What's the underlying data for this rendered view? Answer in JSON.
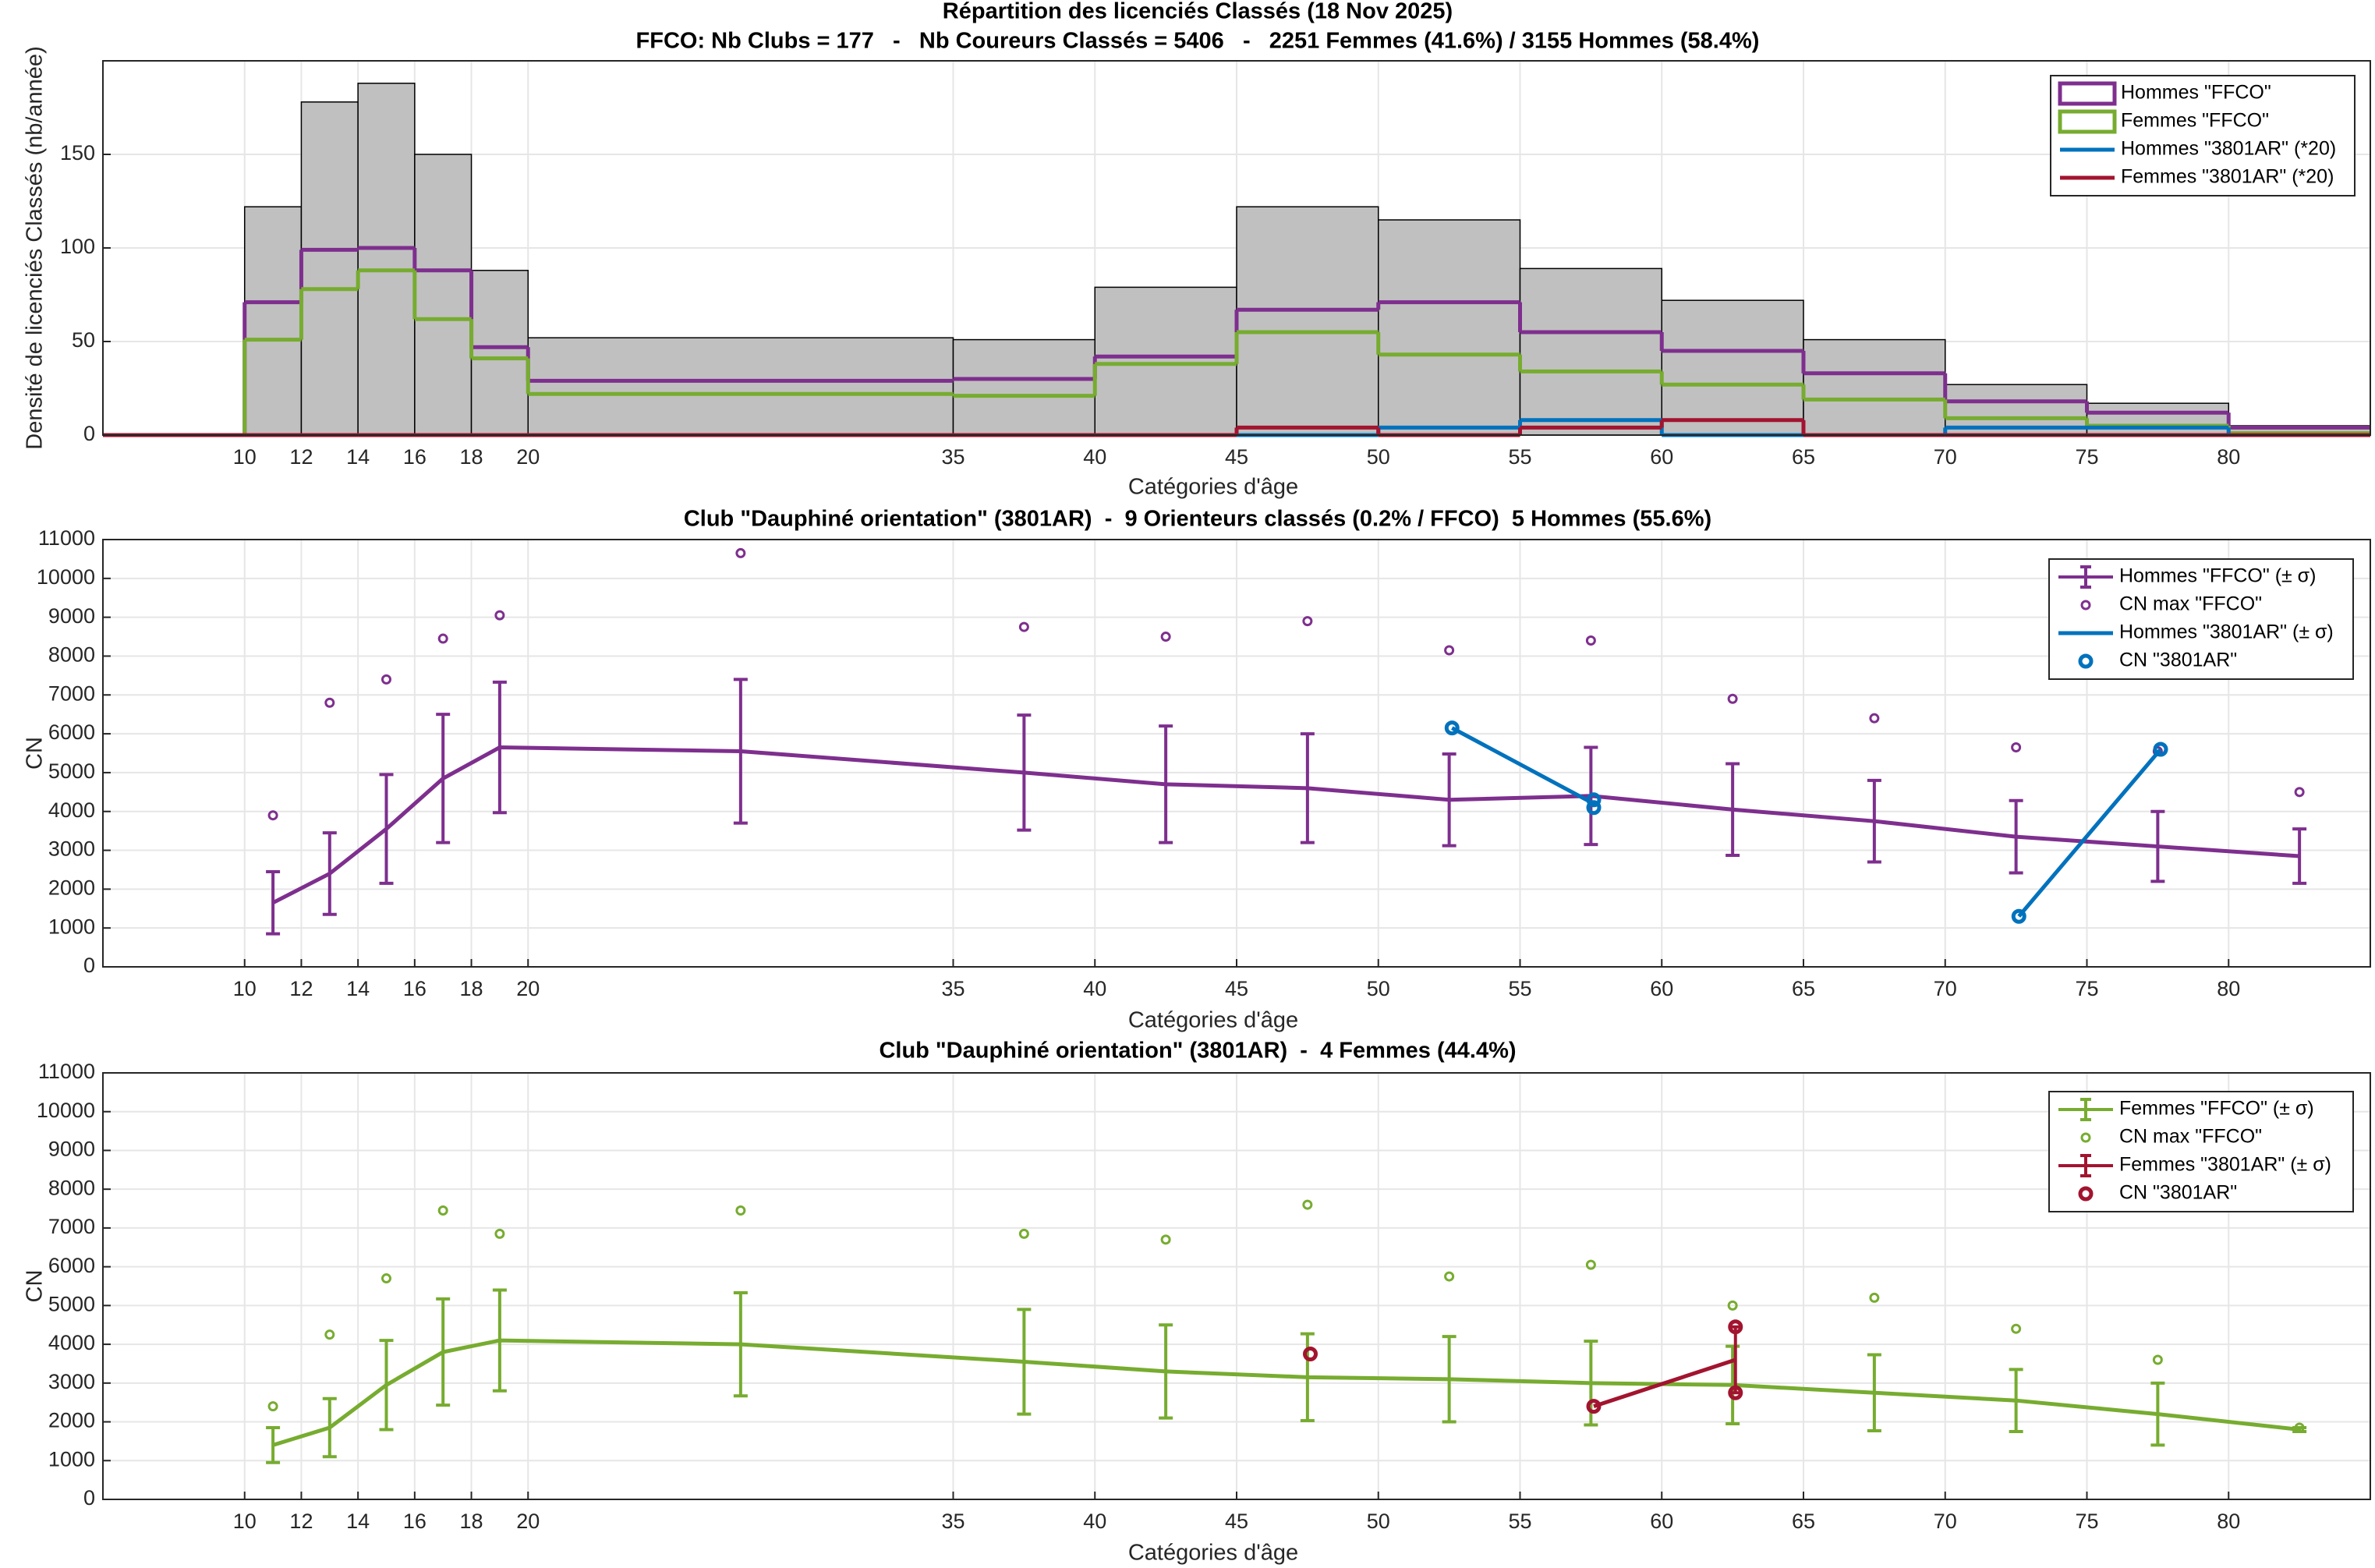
{
  "chart_data": [
    {
      "type": "histogram",
      "title": "Répartition des licenciés Classés (18 Nov 2025)",
      "subtitle": "FFCO: Nb Clubs = 177   -   Nb Coureurs Classés = 5406   -   2251 Femmes (41.6%) / 3155 Hommes (58.4%)",
      "xlabel": "Catégories d'âge",
      "ylabel": "Densité de licenciés Classés (nb/année)",
      "xlim": [
        5,
        85
      ],
      "xticks": [
        10,
        12,
        14,
        16,
        18,
        20,
        35,
        40,
        45,
        50,
        55,
        60,
        65,
        70,
        75,
        80
      ],
      "ylim": [
        0,
        200
      ],
      "yticks": [
        0,
        50,
        100,
        150
      ],
      "grid": true,
      "legend": "top-right",
      "bins": [
        5,
        10,
        12,
        14,
        16,
        18,
        20,
        35,
        40,
        45,
        50,
        55,
        60,
        65,
        70,
        75,
        80,
        85
      ],
      "values": [
        0,
        122,
        178,
        188,
        150,
        88,
        52,
        51,
        79,
        122,
        115,
        89,
        72,
        51,
        27,
        17,
        5
      ],
      "color": "#c0c0c0",
      "series": [
        {
          "name": "Hommes \"FFCO\"",
          "color": "#7e2f8e",
          "style": "outline",
          "values": [
            0,
            71,
            99,
            100,
            88,
            47,
            29,
            30,
            42,
            67,
            71,
            55,
            45,
            33,
            18,
            12,
            4
          ]
        },
        {
          "name": "Femmes \"FFCO\"",
          "color": "#77ac30",
          "style": "outline",
          "values": [
            0,
            51,
            78,
            88,
            62,
            41,
            22,
            21,
            38,
            55,
            43,
            34,
            27,
            19,
            9,
            5,
            1
          ]
        },
        {
          "name": "Hommes \"3801AR\" (*20)",
          "color": "#0072bd",
          "style": "stairs",
          "values": [
            0,
            0,
            0,
            0,
            0,
            0,
            0,
            0,
            0,
            0,
            4,
            8,
            0,
            0,
            4,
            4,
            0
          ]
        },
        {
          "name": "Femmes \"3801AR\" (*20)",
          "color": "#a2142f",
          "style": "stairs",
          "values": [
            0,
            0,
            0,
            0,
            0,
            0,
            0,
            0,
            0,
            4,
            0,
            4,
            8,
            0,
            0,
            0,
            0
          ]
        }
      ]
    },
    {
      "type": "line",
      "title": "Club \"Dauphiné orientation\" (3801AR)  -  9 Orienteurs classés (0.2% / FFCO)  5 Hommes (55.6%)",
      "xlabel": "Catégories d'âge",
      "ylabel": "CN",
      "xlim": [
        5,
        85
      ],
      "xticks": [
        10,
        12,
        14,
        16,
        18,
        20,
        35,
        40,
        45,
        50,
        55,
        60,
        65,
        70,
        75,
        80
      ],
      "ylim": [
        0,
        11000
      ],
      "yticks": [
        0,
        1000,
        2000,
        3000,
        4000,
        5000,
        6000,
        7000,
        8000,
        9000,
        10000,
        11000
      ],
      "grid": true,
      "legend": "top-right",
      "series": [
        {
          "name": "Hommes \"FFCO\" (± σ)",
          "color": "#7e2f8e",
          "style": "errorbar",
          "x": [
            11,
            13,
            15,
            17,
            19,
            27.5,
            37.5,
            42.5,
            47.5,
            52.5,
            57.5,
            62.5,
            67.5,
            72.5,
            77.5,
            82.5
          ],
          "values": [
            1650,
            2400,
            3550,
            4850,
            5650,
            5550,
            5000,
            4700,
            4600,
            4300,
            4400,
            4050,
            3750,
            3350,
            3100,
            2850
          ],
          "std": [
            800,
            1050,
            1400,
            1650,
            1680,
            1850,
            1480,
            1500,
            1400,
            1180,
            1250,
            1180,
            1050,
            930,
            900,
            700
          ]
        },
        {
          "name": "CN max \"FFCO\"",
          "color": "#7e2f8e",
          "style": "markers",
          "x": [
            11,
            13,
            15,
            17,
            19,
            27.5,
            37.5,
            42.5,
            47.5,
            52.5,
            57.5,
            62.5,
            67.5,
            72.5,
            77.5,
            82.5
          ],
          "values": [
            3900,
            6800,
            7400,
            8450,
            9050,
            10650,
            8750,
            8500,
            8900,
            8150,
            8400,
            6900,
            6400,
            5650,
            5550,
            4500
          ]
        },
        {
          "name": "Hommes \"3801AR\" (± σ)",
          "color": "#0072bd",
          "style": "line",
          "x": [
            52.6,
            57.6,
            62.6,
            67.6,
            72.6,
            77.6
          ],
          "values": [
            6150,
            4200,
            null,
            null,
            1300,
            5600
          ]
        },
        {
          "name": "CN \"3801AR\"",
          "color": "#0072bd",
          "style": "markers-bold",
          "x": [
            52.6,
            57.6,
            57.6,
            72.6,
            77.6
          ],
          "values": [
            6150,
            4300,
            4100,
            1300,
            5600
          ]
        }
      ]
    },
    {
      "type": "line",
      "title": "Club \"Dauphiné orientation\" (3801AR)  -  4 Femmes (44.4%)",
      "xlabel": "Catégories d'âge",
      "ylabel": "CN",
      "xlim": [
        5,
        85
      ],
      "xticks": [
        10,
        12,
        14,
        16,
        18,
        20,
        35,
        40,
        45,
        50,
        55,
        60,
        65,
        70,
        75,
        80
      ],
      "ylim": [
        0,
        11000
      ],
      "yticks": [
        0,
        1000,
        2000,
        3000,
        4000,
        5000,
        6000,
        7000,
        8000,
        9000,
        10000,
        11000
      ],
      "grid": true,
      "legend": "top-right",
      "series": [
        {
          "name": "Femmes \"FFCO\" (± σ)",
          "color": "#77ac30",
          "style": "errorbar",
          "x": [
            11,
            13,
            15,
            17,
            19,
            27.5,
            37.5,
            42.5,
            47.5,
            52.5,
            57.5,
            62.5,
            67.5,
            72.5,
            77.5,
            82.5
          ],
          "values": [
            1400,
            1850,
            2950,
            3800,
            4100,
            4000,
            3550,
            3300,
            3150,
            3100,
            3000,
            2950,
            2750,
            2550,
            2200,
            1800
          ],
          "std": [
            450,
            750,
            1150,
            1370,
            1300,
            1330,
            1350,
            1200,
            1120,
            1100,
            1080,
            1000,
            980,
            800,
            800,
            50
          ]
        },
        {
          "name": "CN max \"FFCO\"",
          "color": "#77ac30",
          "style": "markers",
          "x": [
            11,
            13,
            15,
            17,
            19,
            27.5,
            37.5,
            42.5,
            47.5,
            52.5,
            57.5,
            62.5,
            67.5,
            72.5,
            77.5,
            82.5
          ],
          "values": [
            2400,
            4250,
            5700,
            7450,
            6850,
            7450,
            6850,
            6700,
            7600,
            5750,
            6050,
            5000,
            5200,
            4400,
            3600,
            1850
          ]
        },
        {
          "name": "Femmes \"3801AR\" (± σ)",
          "color": "#a2142f",
          "style": "errorbar",
          "x": [
            47.6,
            52.6,
            57.6,
            62.6
          ],
          "values": [
            3750,
            null,
            2400,
            3600
          ],
          "std": [
            null,
            null,
            null,
            850
          ]
        },
        {
          "name": "CN \"3801AR\"",
          "color": "#a2142f",
          "style": "markers-bold",
          "x": [
            47.6,
            57.6,
            62.6,
            62.6
          ],
          "values": [
            3750,
            2400,
            4450,
            2750
          ]
        }
      ]
    }
  ]
}
